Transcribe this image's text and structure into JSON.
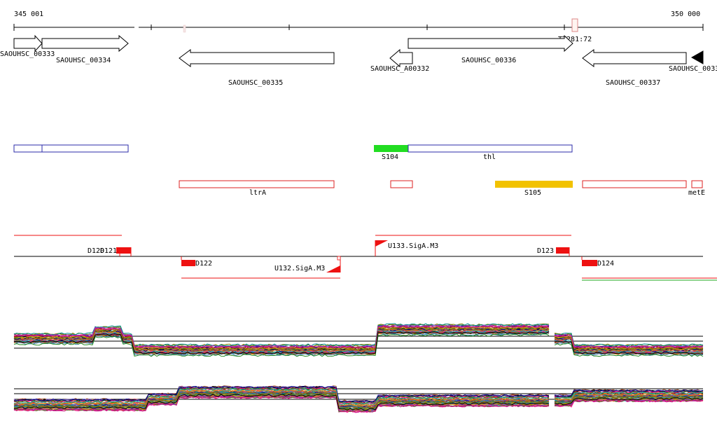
{
  "ruler": {
    "start_label": "345 001",
    "end_label": "350 000",
    "site_label": "TT281:72"
  },
  "genes": [
    {
      "id": "g333",
      "label": "SAOUHSC_00333",
      "strand": "+",
      "fill": "#ffffff"
    },
    {
      "id": "g334",
      "label": "SAOUHSC_00334",
      "strand": "+",
      "fill": "#ffffff"
    },
    {
      "id": "g335",
      "label": "SAOUHSC_00335",
      "strand": "-",
      "fill": "#ffffff"
    },
    {
      "id": "g332",
      "label": "SAOUHSC_A00332",
      "strand": "-",
      "fill": "#ffffff"
    },
    {
      "id": "g336",
      "label": "SAOUHSC_00336",
      "strand": "+",
      "fill": "#ffffff"
    },
    {
      "id": "g337",
      "label": "SAOUHSC_00337",
      "strand": "-",
      "fill": "#ffffff"
    },
    {
      "id": "g338",
      "label": "SAOUHSC_0033",
      "strand": "-",
      "fill": "#000000"
    }
  ],
  "transcripts_blue": [
    {
      "label": "",
      "color": "#2b2ba8"
    },
    {
      "label": "S104",
      "color": "#22dd22"
    },
    {
      "label": "thl",
      "color": "#2b2ba8"
    }
  ],
  "transcripts_red": [
    {
      "label": "ltrA",
      "color": "#dd2222"
    },
    {
      "label": "",
      "color": "#dd2222"
    },
    {
      "label": "S105",
      "color": "#f2c200"
    },
    {
      "label": "",
      "color": "#dd2222"
    },
    {
      "label": "metE",
      "color": "#dd2222"
    }
  ],
  "regulatory": {
    "upper": [
      {
        "label": "D120",
        "kind": "text"
      },
      {
        "label": "D121",
        "kind": "block"
      },
      {
        "label": "U133.SigA.M3",
        "kind": "promoter"
      },
      {
        "label": "D123",
        "kind": "block"
      }
    ],
    "lower": [
      {
        "label": "D122",
        "kind": "block"
      },
      {
        "label": "U132.SigA.M3",
        "kind": "promoter"
      },
      {
        "label": "D124",
        "kind": "block"
      }
    ]
  },
  "colors": {
    "axis": "#000000",
    "gene_outline": "#000000",
    "regulator_red": "#ee1111",
    "green_line": "#22aa22"
  },
  "expression_profiles": {
    "track_count": 2,
    "line_colors": [
      "#8b4513",
      "#cc3333",
      "#ff8c00",
      "#2e8b57",
      "#6a5acd",
      "#b22222",
      "#556b2f",
      "#008b8b",
      "#9932cc",
      "#daa520",
      "#ff1493",
      "#4682b4",
      "#a0522d",
      "#228b22",
      "#000080",
      "#808000",
      "#c71585",
      "#20b2aa",
      "#d2691e",
      "#000000"
    ]
  }
}
